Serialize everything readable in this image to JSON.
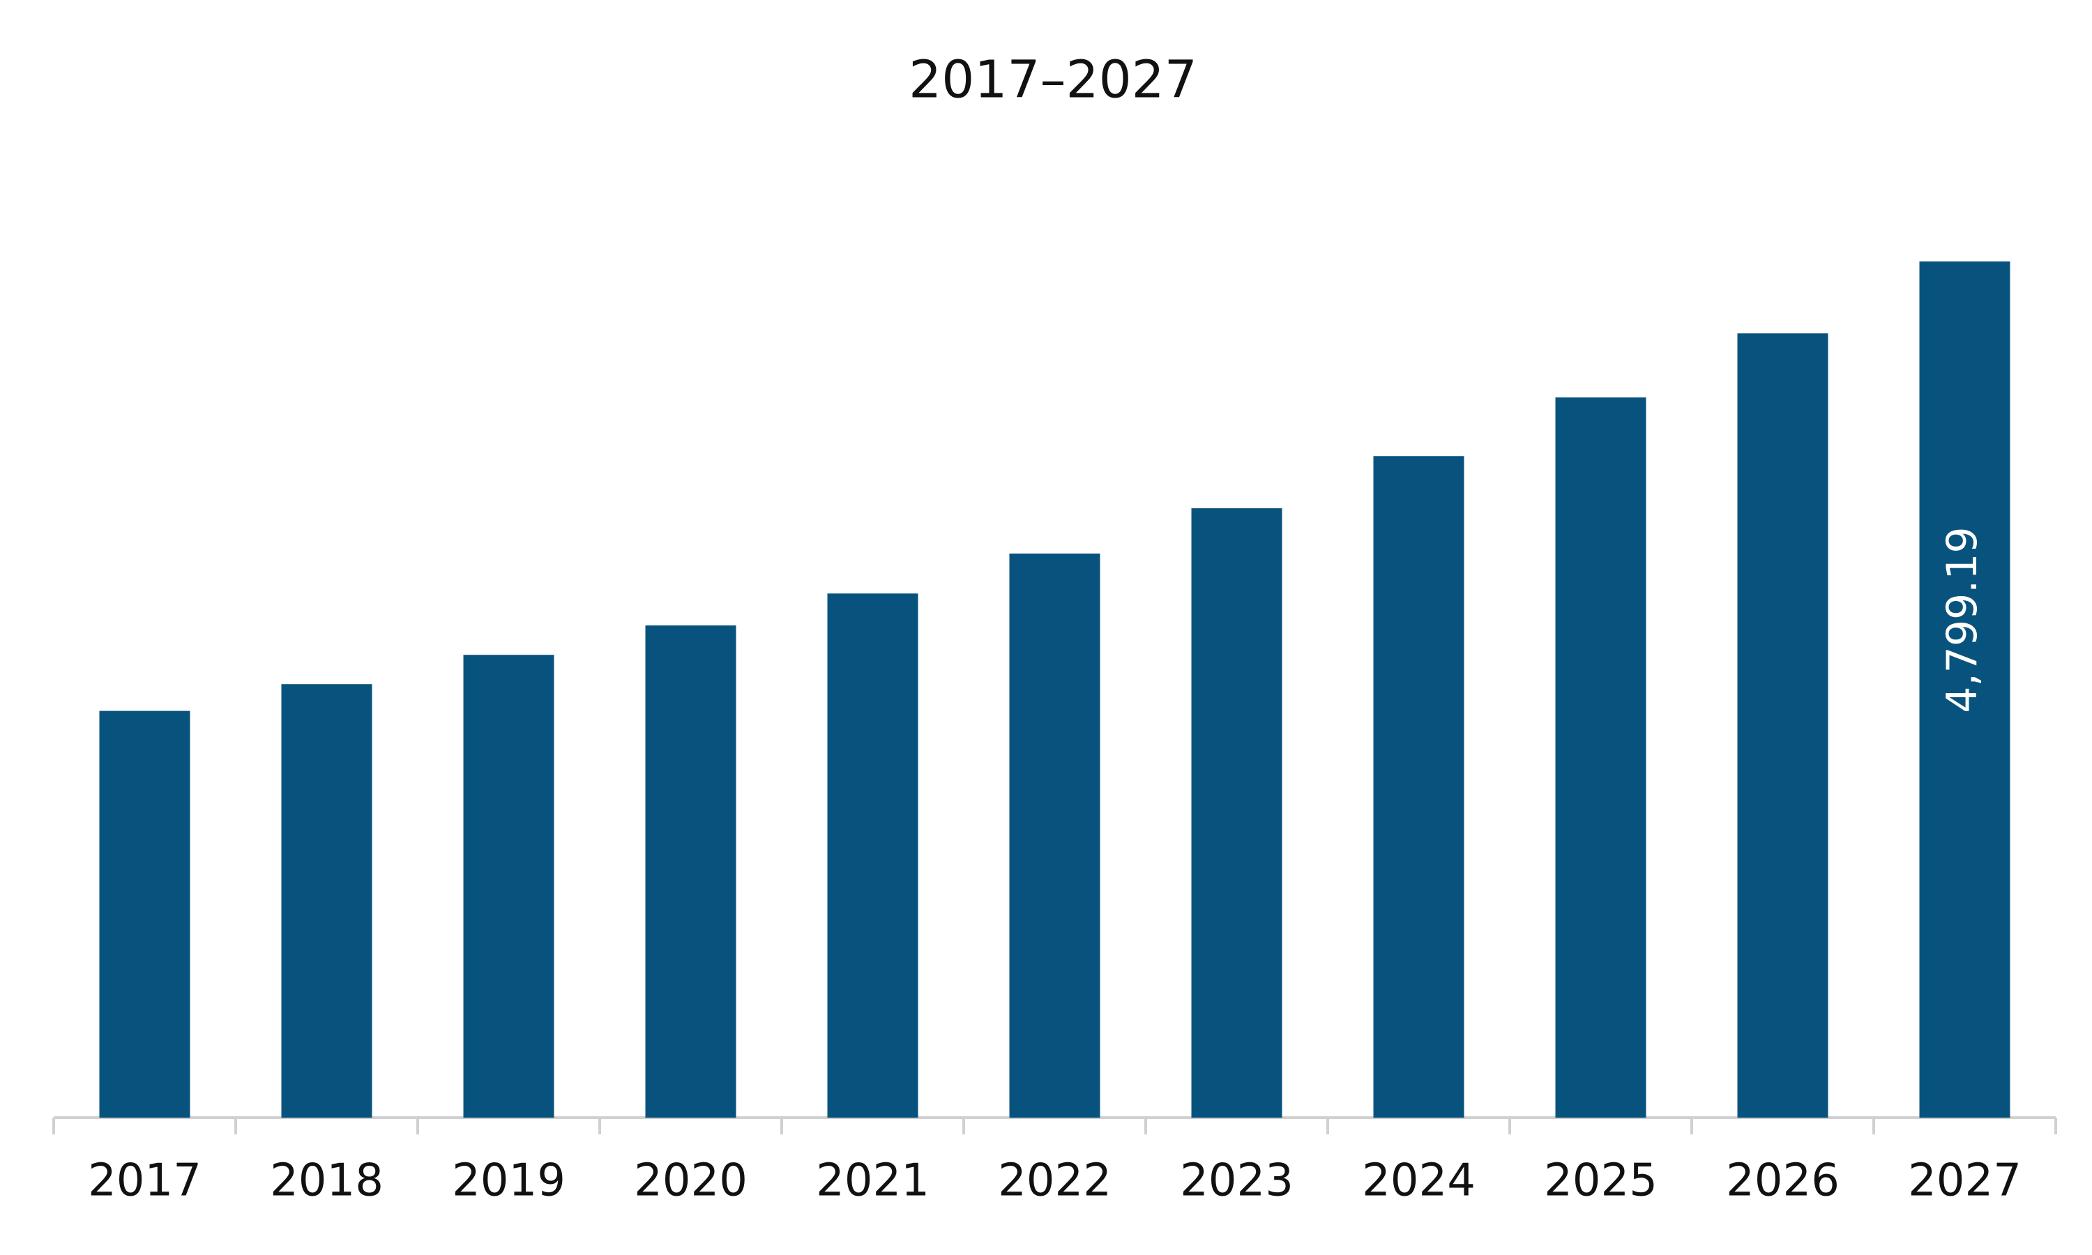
{
  "chart_data": {
    "type": "bar",
    "title": "2017–2027",
    "categories": [
      "2017",
      "2018",
      "2019",
      "2020",
      "2021",
      "2022",
      "2023",
      "2024",
      "2025",
      "2026",
      "2027"
    ],
    "values": [
      2280,
      2430,
      2594,
      2759,
      2938,
      3162,
      3416,
      3708,
      4037,
      4396,
      4799.19
    ],
    "value_labels": [
      null,
      null,
      null,
      null,
      null,
      null,
      null,
      null,
      null,
      null,
      "4,799.19"
    ],
    "color": "#08537e"
  }
}
